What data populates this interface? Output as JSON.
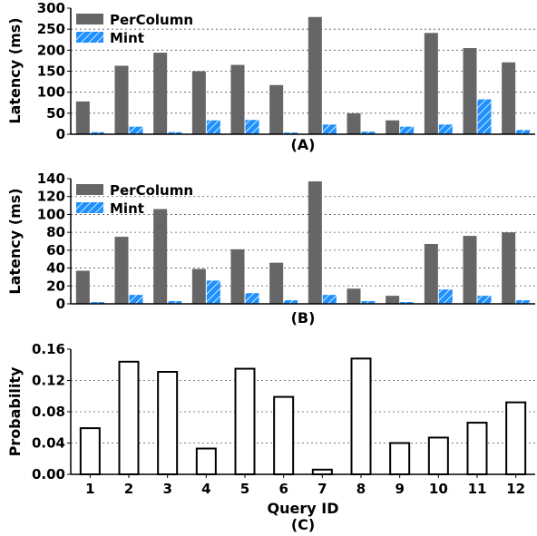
{
  "colors": {
    "percolumn": "#666666",
    "mint": "#1e90ff",
    "probability_fill": "#ffffff",
    "axis": "#000000"
  },
  "chart_data": [
    {
      "type": "bar",
      "caption": "(A)",
      "ylabel": "Latency (ms)",
      "categories": [
        "1",
        "2",
        "3",
        "4",
        "5",
        "6",
        "7",
        "8",
        "9",
        "10",
        "11",
        "12"
      ],
      "ylim": [
        0,
        300
      ],
      "yticks": [
        0,
        50,
        100,
        150,
        200,
        250,
        300
      ],
      "grid": true,
      "legend_position": "top-left",
      "series": [
        {
          "name": "PerColumn",
          "values": [
            78,
            163,
            194,
            150,
            165,
            117,
            279,
            50,
            33,
            241,
            205,
            171
          ]
        },
        {
          "name": "Mint",
          "values": [
            5,
            18,
            5,
            33,
            34,
            4,
            23,
            6,
            18,
            23,
            83,
            10
          ]
        }
      ]
    },
    {
      "type": "bar",
      "caption": "(B)",
      "ylabel": "Latency (ms)",
      "categories": [
        "1",
        "2",
        "3",
        "4",
        "5",
        "6",
        "7",
        "8",
        "9",
        "10",
        "11",
        "12"
      ],
      "ylim": [
        0,
        140
      ],
      "yticks": [
        0,
        20,
        40,
        60,
        80,
        100,
        120,
        140
      ],
      "grid": true,
      "legend_position": "top-left",
      "series": [
        {
          "name": "PerColumn",
          "values": [
            37,
            75,
            106,
            39,
            61,
            46,
            137,
            17,
            9,
            67,
            76,
            80
          ]
        },
        {
          "name": "Mint",
          "values": [
            2,
            10,
            3,
            26,
            12,
            4,
            10,
            3,
            2,
            16,
            9,
            4
          ]
        }
      ]
    },
    {
      "type": "bar",
      "caption": "(C)",
      "ylabel": "Probability",
      "xlabel": "Query ID",
      "categories": [
        "1",
        "2",
        "3",
        "4",
        "5",
        "6",
        "7",
        "8",
        "9",
        "10",
        "11",
        "12"
      ],
      "ylim": [
        0,
        0.16
      ],
      "yticks": [
        "0.00",
        "0.04",
        "0.08",
        "0.12",
        "0.16"
      ],
      "grid": true,
      "series": [
        {
          "values": [
            0.059,
            0.144,
            0.131,
            0.033,
            0.135,
            0.099,
            0.006,
            0.148,
            0.04,
            0.047,
            0.066,
            0.092
          ]
        }
      ]
    }
  ]
}
